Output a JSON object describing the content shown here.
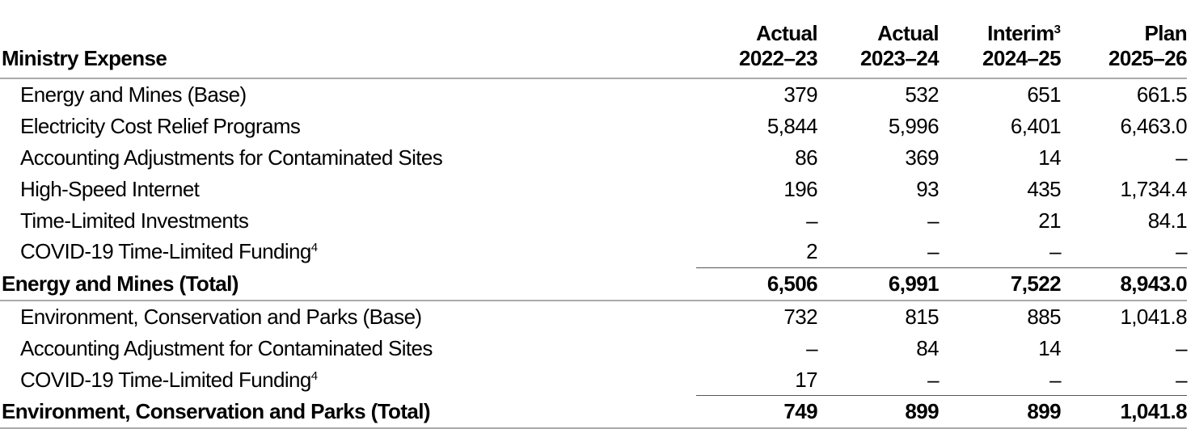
{
  "header": {
    "title": "Ministry Expense",
    "columns": [
      {
        "line1": "Actual",
        "line2": "2022–23"
      },
      {
        "line1": "Actual",
        "line2": "2023–24"
      },
      {
        "line1": "Interim",
        "note": "3",
        "line2": "2024–25"
      },
      {
        "line1": "Plan",
        "line2": "2025–26"
      }
    ]
  },
  "table": {
    "rows": [
      {
        "label": "Energy and Mines (Base)",
        "values": [
          "379",
          "532",
          "651",
          "661.5"
        ],
        "total": false
      },
      {
        "label": "Electricity Cost Relief Programs",
        "values": [
          "5,844",
          "5,996",
          "6,401",
          "6,463.0"
        ],
        "total": false
      },
      {
        "label": "Accounting Adjustments for Contaminated Sites",
        "values": [
          "86",
          "369",
          "14",
          "–"
        ],
        "total": false
      },
      {
        "label": "High-Speed Internet",
        "values": [
          "196",
          "93",
          "435",
          "1,734.4"
        ],
        "total": false
      },
      {
        "label": "Time-Limited Investments",
        "values": [
          "–",
          "–",
          "21",
          "84.1"
        ],
        "total": false
      },
      {
        "label": "COVID-19 Time-Limited Funding",
        "note": "4",
        "values": [
          "2",
          "–",
          "–",
          "–"
        ],
        "total": false
      },
      {
        "label": "Energy and Mines (Total)",
        "values": [
          "6,506",
          "6,991",
          "7,522",
          "8,943.0"
        ],
        "total": true
      },
      {
        "label": "Environment, Conservation and Parks (Base)",
        "values": [
          "732",
          "815",
          "885",
          "1,041.8"
        ],
        "total": false
      },
      {
        "label": "Accounting Adjustment for Contaminated Sites",
        "values": [
          "–",
          "84",
          "14",
          "–"
        ],
        "total": false
      },
      {
        "label": "COVID-19 Time-Limited Funding",
        "note": "4",
        "values": [
          "17",
          "–",
          "–",
          "–"
        ],
        "total": false
      },
      {
        "label": "Environment, Conservation and Parks (Total)",
        "values": [
          "749",
          "899",
          "899",
          "1,041.8"
        ],
        "total": true
      }
    ]
  }
}
